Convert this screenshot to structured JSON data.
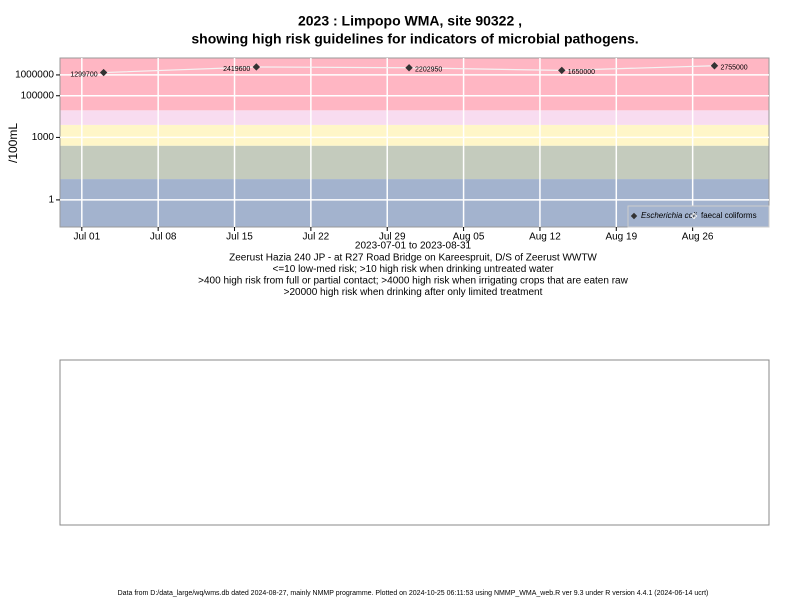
{
  "chart_data": {
    "type": "scatter",
    "title": "2023 : Limpopo WMA, site 90322 ,",
    "subtitle": "showing high risk guidelines for indicators of microbial pathogens.",
    "y_label": "/100mL",
    "x_label": "2023-07-01 to 2023-08-31",
    "notes": [
      "Zeerust Hazia 240 JP - at R27 Road Bridge on Kareespruit, D/S of Zeerust WWTW",
      "<=10 low-med risk; >10 high risk when drinking untreated water",
      ">400 high risk from full or partial contact; >4000 high risk when irrigating crops that are eaten raw",
      ">20000 high risk when drinking after only limited treatment"
    ],
    "footer": "Data from D:/data_large/wq/wms.db dated 2024-08-27, mainly NMMP programme. Plotted on 2024-10-25 06:11:53 using NMMP_WMA_web.R ver 9.3 under R version 4.4.1 (2024-06-14 ucrt)",
    "log_y": true,
    "grid": true,
    "legend_position": "bottom-right",
    "band_limits": [
      10,
      400,
      4000,
      20000
    ],
    "band_colors": [
      "#a3b3ce",
      "#c4cbbd",
      "#fff6c8",
      "#f8dcf0",
      "#ffb6c3"
    ],
    "x": [
      "2023-07-03",
      "2023-07-17",
      "2023-07-31",
      "2023-08-14",
      "2023-08-28"
    ],
    "series": [
      {
        "name": "Escherichia coli",
        "color": "#333333",
        "values": [
          1299700,
          2419600,
          2202950,
          1650000,
          2755000
        ]
      },
      {
        "name": "faecal coliforms",
        "color": "#333333",
        "values": [
          null,
          null,
          null,
          null,
          null
        ]
      }
    ],
    "xlim": [
      "2023-06-29",
      "2023-09-02"
    ],
    "xticks": [
      {
        "value": "2023-07-01",
        "label": "Jul 01"
      },
      {
        "value": "2023-07-08",
        "label": "Jul 08"
      },
      {
        "value": "2023-07-15",
        "label": "Jul 15"
      },
      {
        "value": "2023-07-22",
        "label": "Jul 22"
      },
      {
        "value": "2023-07-29",
        "label": "Jul 29"
      },
      {
        "value": "2023-08-05",
        "label": "Aug 05"
      },
      {
        "value": "2023-08-12",
        "label": "Aug 12"
      },
      {
        "value": "2023-08-19",
        "label": "Aug 19"
      },
      {
        "value": "2023-08-26",
        "label": "Aug 26"
      }
    ],
    "ylim": [
      0.05,
      6500000
    ],
    "yticks": [
      1,
      1000,
      100000,
      1000000
    ]
  }
}
